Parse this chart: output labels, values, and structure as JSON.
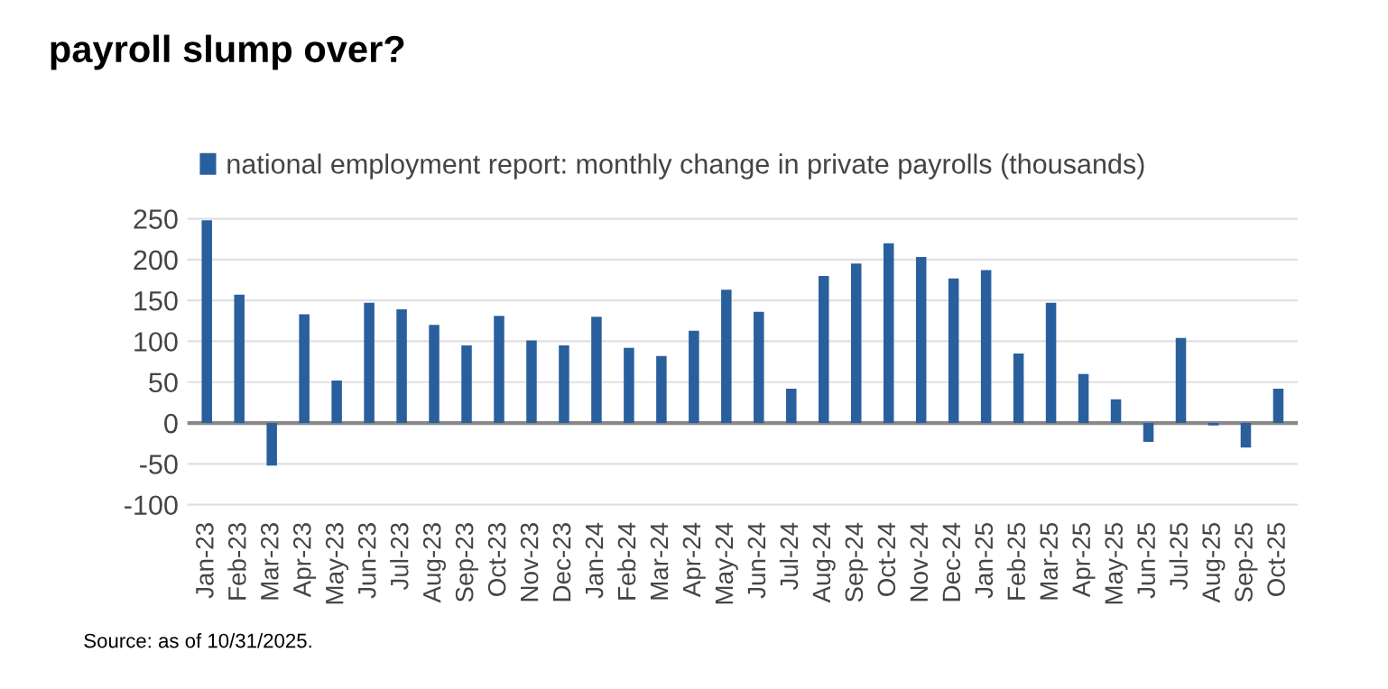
{
  "chart_data": {
    "type": "bar",
    "title": "payroll slump over?",
    "categories": [
      "Jan-23",
      "Feb-23",
      "Mar-23",
      "Apr-23",
      "May-23",
      "Jun-23",
      "Jul-23",
      "Aug-23",
      "Sep-23",
      "Oct-23",
      "Nov-23",
      "Dec-23",
      "Jan-24",
      "Feb-24",
      "Mar-24",
      "Apr-24",
      "May-24",
      "Jun-24",
      "Jul-24",
      "Aug-24",
      "Sep-24",
      "Oct-24",
      "Nov-24",
      "Dec-24",
      "Jan-25",
      "Feb-25",
      "Mar-25",
      "Apr-25",
      "May-25",
      "Jun-25",
      "Jul-25",
      "Aug-25",
      "Sep-25",
      "Oct-25"
    ],
    "series": [
      {
        "name": "national employment report: monthly change in private payrolls (thousands)",
        "color": "#2a5f9e",
        "values": [
          248,
          157,
          -52,
          133,
          52,
          147,
          139,
          120,
          95,
          131,
          101,
          95,
          130,
          92,
          82,
          113,
          163,
          136,
          42,
          180,
          195,
          220,
          203,
          177,
          187,
          85,
          147,
          60,
          29,
          -23,
          104,
          -3,
          -30,
          42
        ]
      }
    ],
    "ylim": [
      -100,
      250
    ],
    "yticks": [
      -100,
      -50,
      0,
      50,
      100,
      150,
      200,
      250
    ],
    "grid": "y",
    "legend": "top",
    "ref_lines": [
      {
        "axis": "y",
        "value": 0,
        "color": "#888888"
      }
    ],
    "annotations": [
      "Source: as of 10/31/2025."
    ]
  }
}
